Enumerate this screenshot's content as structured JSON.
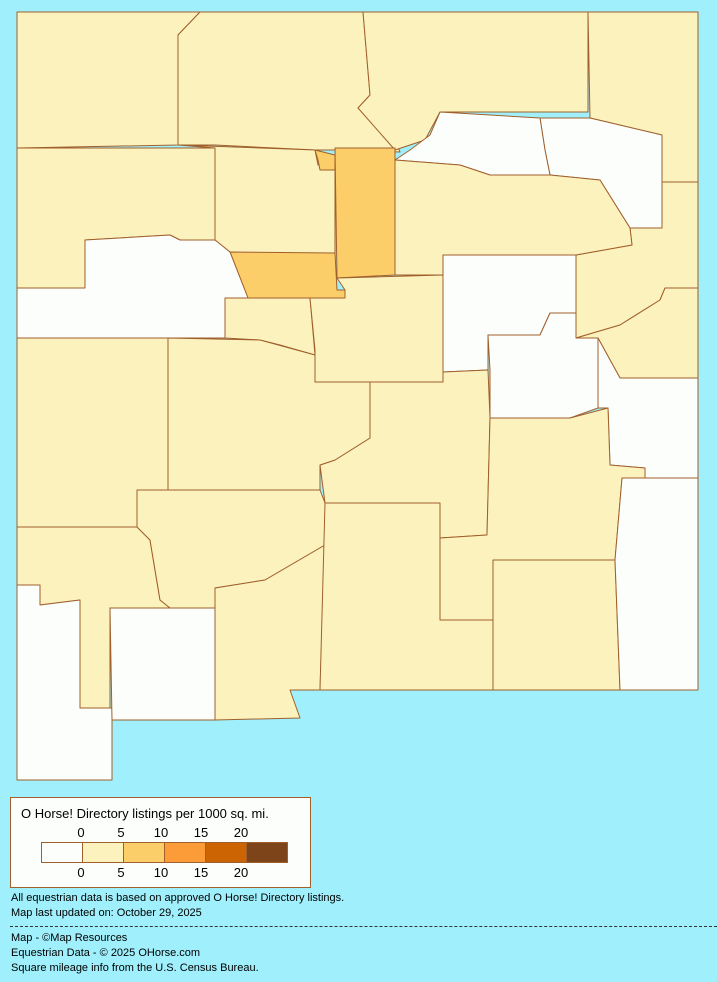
{
  "colors": {
    "background": "#9ff0fc",
    "border": "#a0602c",
    "classes": [
      "#fcfefc",
      "#fcf2be",
      "#fcce6a",
      "#fc9c38",
      "#cc6404",
      "#7c4418"
    ]
  },
  "legend": {
    "title": "O Horse! Directory listings per 1000 sq. mi.",
    "top_ticks": [
      "0",
      "5",
      "10",
      "15",
      "20"
    ],
    "bottom_ticks": [
      "0",
      "5",
      "10",
      "15",
      "20"
    ]
  },
  "notes": {
    "line1": "All equestrian data is based on approved O Horse! Directory listings.",
    "line2": "Map last updated on: October 29, 2025",
    "credit1": "Map - ©Map Resources",
    "credit2": "Equestrian Data - © 2025 OHorse.com",
    "credit3": "Square mileage info from the U.S. Census Bureau."
  },
  "regions": [
    {
      "class": 1
    },
    {
      "class": 1
    },
    {
      "class": 1
    },
    {
      "class": 1
    },
    {
      "class": 0
    },
    {
      "class": 0
    },
    {
      "class": 1
    },
    {
      "class": 1
    },
    {
      "class": 1
    },
    {
      "class": 2
    },
    {
      "class": 2
    },
    {
      "class": 2
    },
    {
      "class": 1
    },
    {
      "class": 0
    },
    {
      "class": 1
    },
    {
      "class": 1
    },
    {
      "class": 0
    },
    {
      "class": 1
    },
    {
      "class": 0
    },
    {
      "class": 0
    },
    {
      "class": 1
    },
    {
      "class": 1
    },
    {
      "class": 1
    },
    {
      "class": 1
    },
    {
      "class": 1
    },
    {
      "class": 0
    },
    {
      "class": 0
    },
    {
      "class": 1
    },
    {
      "class": 1
    },
    {
      "class": 1
    },
    {
      "class": 1
    },
    {
      "class": 0
    },
    {
      "class": 1
    }
  ]
}
